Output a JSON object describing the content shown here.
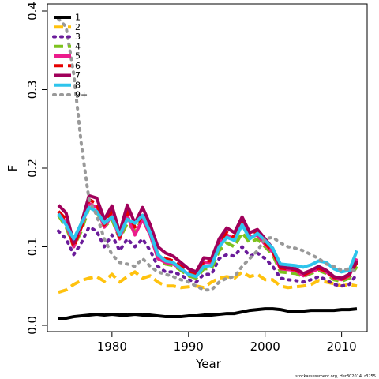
{
  "chart_data": {
    "type": "line",
    "xlabel": "Year",
    "ylabel": "F",
    "xlim": [
      1973,
      2012
    ],
    "ylim": [
      0,
      0.4
    ],
    "xticks": [
      1980,
      1990,
      2000,
      2010
    ],
    "yticks": [
      {
        "value": 0,
        "label": "0.0"
      },
      0.1,
      0.2,
      0.3,
      0.4
    ],
    "legend": "top-left",
    "footnote": "stockassessment.org, Her302014, r3255",
    "x": [
      1973,
      1974,
      1975,
      1976,
      1977,
      1978,
      1979,
      1980,
      1981,
      1982,
      1983,
      1984,
      1985,
      1986,
      1987,
      1988,
      1989,
      1990,
      1991,
      1992,
      1993,
      1994,
      1995,
      1996,
      1997,
      1998,
      1999,
      2000,
      2001,
      2002,
      2003,
      2004,
      2005,
      2006,
      2007,
      2008,
      2009,
      2010,
      2011,
      2012
    ],
    "series": [
      {
        "name": "1",
        "color": "#000000",
        "dash": "solid",
        "values": [
          0.009,
          0.009,
          0.011,
          0.012,
          0.013,
          0.014,
          0.013,
          0.014,
          0.013,
          0.013,
          0.014,
          0.013,
          0.013,
          0.012,
          0.011,
          0.011,
          0.011,
          0.012,
          0.012,
          0.013,
          0.013,
          0.014,
          0.015,
          0.015,
          0.017,
          0.019,
          0.02,
          0.021,
          0.021,
          0.02,
          0.018,
          0.018,
          0.018,
          0.019,
          0.019,
          0.019,
          0.019,
          0.02,
          0.02,
          0.021
        ]
      },
      {
        "name": "2",
        "color": "#FFC20E",
        "dash": "dashed",
        "values": [
          0.042,
          0.045,
          0.052,
          0.057,
          0.06,
          0.062,
          0.056,
          0.065,
          0.055,
          0.062,
          0.068,
          0.06,
          0.063,
          0.055,
          0.05,
          0.05,
          0.048,
          0.049,
          0.05,
          0.048,
          0.055,
          0.06,
          0.062,
          0.06,
          0.068,
          0.062,
          0.065,
          0.058,
          0.058,
          0.05,
          0.048,
          0.049,
          0.05,
          0.052,
          0.057,
          0.055,
          0.053,
          0.05,
          0.052,
          0.05
        ]
      },
      {
        "name": "3",
        "color": "#6A1B9A",
        "dash": "dotted",
        "values": [
          0.12,
          0.11,
          0.09,
          0.105,
          0.125,
          0.12,
          0.1,
          0.115,
          0.095,
          0.11,
          0.1,
          0.11,
          0.095,
          0.075,
          0.068,
          0.068,
          0.064,
          0.058,
          0.055,
          0.065,
          0.065,
          0.085,
          0.09,
          0.088,
          0.1,
          0.088,
          0.092,
          0.085,
          0.075,
          0.06,
          0.058,
          0.057,
          0.055,
          0.058,
          0.062,
          0.058,
          0.052,
          0.05,
          0.052,
          0.065
        ]
      },
      {
        "name": "4",
        "color": "#7DC21E",
        "dash": "dashed",
        "values": [
          0.14,
          0.125,
          0.1,
          0.12,
          0.15,
          0.145,
          0.125,
          0.135,
          0.11,
          0.13,
          0.12,
          0.135,
          0.115,
          0.085,
          0.078,
          0.076,
          0.07,
          0.063,
          0.06,
          0.072,
          0.072,
          0.095,
          0.105,
          0.1,
          0.118,
          0.105,
          0.11,
          0.1,
          0.09,
          0.068,
          0.067,
          0.066,
          0.062,
          0.066,
          0.07,
          0.066,
          0.058,
          0.056,
          0.06,
          0.075
        ]
      },
      {
        "name": "5",
        "color": "#EC1C8C",
        "dash": "solid",
        "values": [
          0.145,
          0.13,
          0.1,
          0.125,
          0.155,
          0.15,
          0.125,
          0.14,
          0.11,
          0.14,
          0.115,
          0.135,
          0.115,
          0.085,
          0.08,
          0.078,
          0.072,
          0.065,
          0.062,
          0.08,
          0.08,
          0.105,
          0.115,
          0.11,
          0.13,
          0.112,
          0.115,
          0.103,
          0.093,
          0.072,
          0.071,
          0.07,
          0.063,
          0.068,
          0.072,
          0.068,
          0.06,
          0.058,
          0.063,
          0.085
        ]
      },
      {
        "name": "6",
        "color": "#E60000",
        "dash": "dashed",
        "values": [
          0.145,
          0.135,
          0.1,
          0.125,
          0.16,
          0.155,
          0.128,
          0.145,
          0.112,
          0.145,
          0.125,
          0.14,
          0.12,
          0.09,
          0.085,
          0.082,
          0.075,
          0.068,
          0.064,
          0.082,
          0.082,
          0.107,
          0.118,
          0.112,
          0.133,
          0.114,
          0.118,
          0.105,
          0.094,
          0.073,
          0.072,
          0.071,
          0.064,
          0.069,
          0.073,
          0.069,
          0.061,
          0.059,
          0.064,
          0.08
        ]
      },
      {
        "name": "7",
        "color": "#A0005A",
        "dash": "solid",
        "values": [
          0.153,
          0.143,
          0.105,
          0.13,
          0.165,
          0.162,
          0.135,
          0.152,
          0.118,
          0.153,
          0.13,
          0.15,
          0.128,
          0.1,
          0.092,
          0.088,
          0.08,
          0.072,
          0.068,
          0.086,
          0.085,
          0.11,
          0.124,
          0.118,
          0.138,
          0.118,
          0.122,
          0.11,
          0.098,
          0.075,
          0.073,
          0.072,
          0.066,
          0.07,
          0.075,
          0.07,
          0.062,
          0.06,
          0.065,
          0.082
        ]
      },
      {
        "name": "8",
        "color": "#2EC4EC",
        "dash": "solid",
        "values": [
          0.142,
          0.128,
          0.11,
          0.13,
          0.15,
          0.145,
          0.13,
          0.138,
          0.115,
          0.135,
          0.13,
          0.14,
          0.118,
          0.09,
          0.082,
          0.08,
          0.072,
          0.065,
          0.062,
          0.075,
          0.076,
          0.1,
          0.112,
          0.108,
          0.128,
          0.11,
          0.117,
          0.108,
          0.098,
          0.078,
          0.077,
          0.076,
          0.074,
          0.077,
          0.082,
          0.08,
          0.072,
          0.068,
          0.07,
          0.095
        ]
      },
      {
        "name": "9+",
        "color": "#999999",
        "dash": "dotted",
        "values": [
          0.39,
          0.38,
          0.32,
          0.23,
          0.16,
          0.14,
          0.11,
          0.09,
          0.08,
          0.078,
          0.075,
          0.085,
          0.075,
          0.068,
          0.065,
          0.062,
          0.058,
          0.055,
          0.05,
          0.045,
          0.045,
          0.055,
          0.06,
          0.062,
          0.075,
          0.085,
          0.095,
          0.11,
          0.112,
          0.105,
          0.1,
          0.098,
          0.095,
          0.09,
          0.085,
          0.078,
          0.075,
          0.07,
          0.072,
          0.068
        ]
      }
    ]
  }
}
